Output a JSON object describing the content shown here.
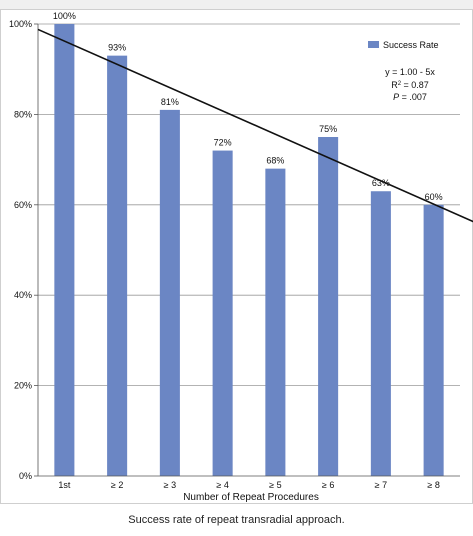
{
  "caption": "Success rate of repeat transradial approach.",
  "chart_data": {
    "type": "bar",
    "categories": [
      "1st",
      "≥ 2",
      "≥ 3",
      "≥ 4",
      "≥ 5",
      "≥ 6",
      "≥ 7",
      "≥ 8"
    ],
    "series": [
      {
        "name": "Success Rate",
        "values": [
          100,
          93,
          81,
          72,
          68,
          75,
          63,
          60
        ],
        "color": "#6b86c4"
      }
    ],
    "data_labels": [
      "100%",
      "93%",
      "81%",
      "72%",
      "68%",
      "75%",
      "63%",
      "60%"
    ],
    "xlabel": "Number of Repeat Procedures",
    "ylabel": "",
    "ylim": [
      0,
      100
    ],
    "yticks": [
      0,
      20,
      40,
      60,
      80,
      100
    ],
    "ytick_labels": [
      "0%",
      "20%",
      "40%",
      "60%",
      "80%",
      "100%"
    ],
    "grid": true,
    "legend": "top-right",
    "trendline": {
      "equation": "y = 1.00 - 5x",
      "r2_prefix": "R",
      "r2_sup": "2",
      "r2_suffix": " = 0.87",
      "p_label": "P",
      "p_suffix": " = .007",
      "start": {
        "x": 0,
        "y": 98.8
      },
      "end": {
        "x": 8.5,
        "y": 55
      }
    }
  }
}
